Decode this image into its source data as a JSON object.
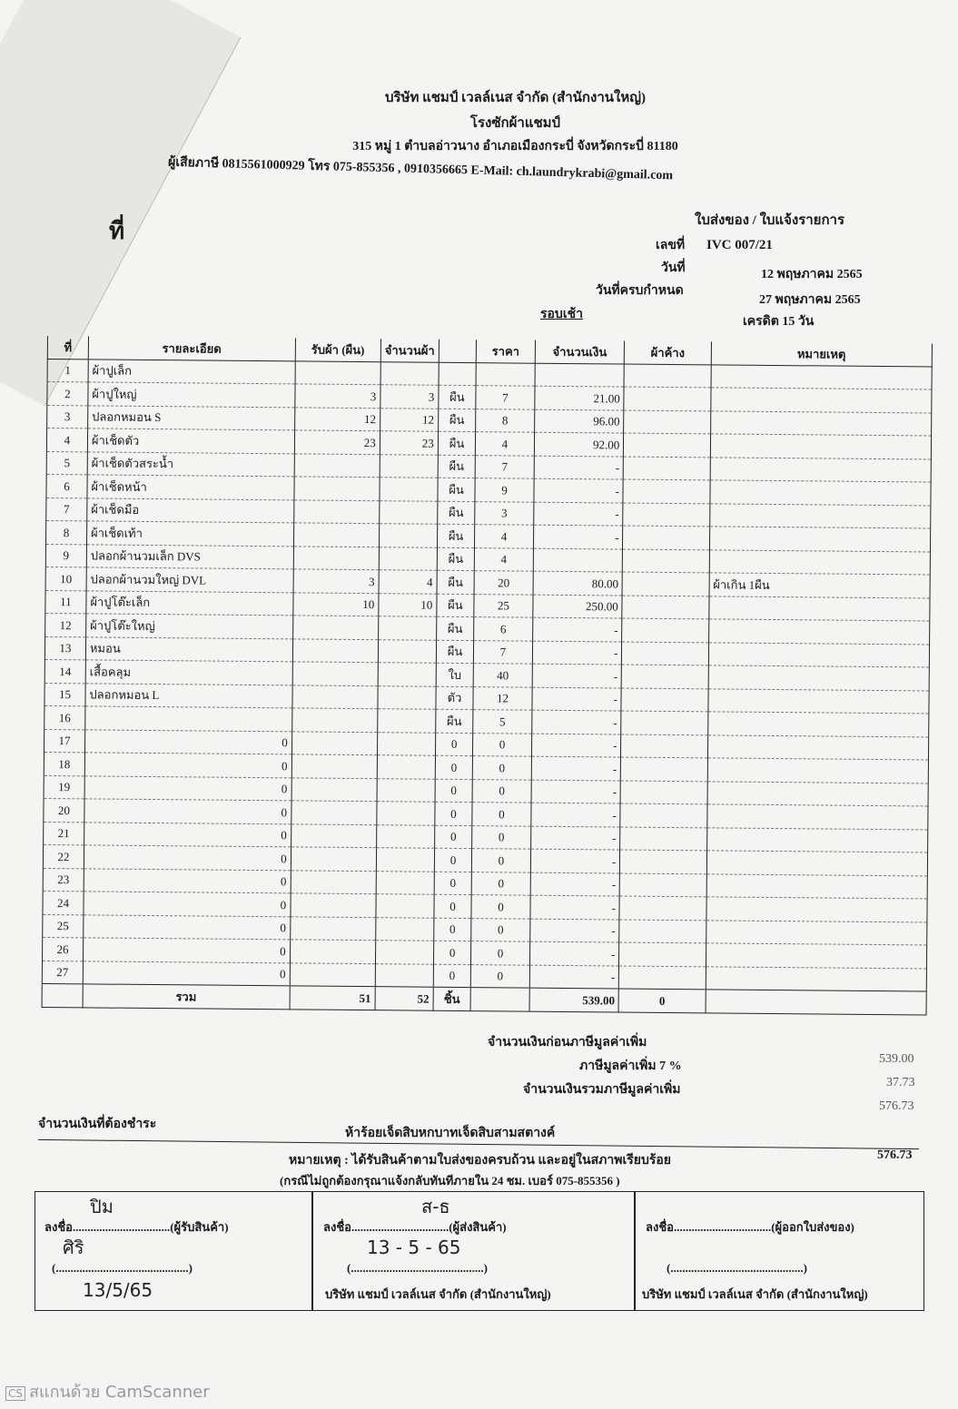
{
  "header": {
    "company": "บริษัท แชมป์ เวลล์เนส จำกัด (สำนักงานใหญ่)",
    "plant": "โรงซักผ้าแชมป์",
    "address": "315 หมู่ 1 ตำบลอ่าวนาง อำเภอเมืองกระบี่ จังหวัดกระบี่ 81180",
    "contact": "ผู้เสียภาษี 0815561000929 โทร 075-855356 , 0910356665 E-Mail: ch.laundrykrabi@gmail.com",
    "customer_label_fragment": "ที่",
    "doc_title": "ใบส่งของ / ใบแจ้งรายการ",
    "no_label": "เลขที่",
    "no_value": "IVC 007/21",
    "date_label": "วันที่",
    "date_value": "12 พฤษภาคม 2565",
    "due_label": "วันที่ครบกำหนด",
    "due_value": "27 พฤษภาคม 2565",
    "round": "รอบเช้า",
    "credit": "เครดิต 15 วัน"
  },
  "table": {
    "columns": [
      "ที่",
      "รายละเอียด",
      "รับผ้า (ผืน)",
      "จำนวนผ้า",
      "",
      "ราคา",
      "จำนวนเงิน",
      "ผ้าค้าง",
      "หมายเหตุ"
    ],
    "rows": [
      [
        "1",
        "ผ้าปูเล็ก",
        "",
        "",
        "",
        "",
        "",
        "",
        ""
      ],
      [
        "2",
        "ผ้าปูใหญ่",
        "3",
        "3",
        "ผืน",
        "7",
        "21.00",
        "",
        ""
      ],
      [
        "3",
        "ปลอกหมอน S",
        "12",
        "12",
        "ผืน",
        "8",
        "96.00",
        "",
        ""
      ],
      [
        "4",
        "ผ้าเช็ดตัว",
        "23",
        "23",
        "ผืน",
        "4",
        "92.00",
        "",
        ""
      ],
      [
        "5",
        "ผ้าเช็ดตัวสระน้ำ",
        "",
        "",
        "ผืน",
        "7",
        "-",
        "",
        ""
      ],
      [
        "6",
        "ผ้าเช็ดหน้า",
        "",
        "",
        "ผืน",
        "9",
        "-",
        "",
        ""
      ],
      [
        "7",
        "ผ้าเช็ดมือ",
        "",
        "",
        "ผืน",
        "3",
        "-",
        "",
        ""
      ],
      [
        "8",
        "ผ้าเช็ดเท้า",
        "",
        "",
        "ผืน",
        "4",
        "-",
        "",
        ""
      ],
      [
        "9",
        "ปลอกผ้านวมเล็ก DVS",
        "",
        "",
        "ผืน",
        "4",
        "",
        "",
        ""
      ],
      [
        "10",
        "ปลอกผ้านวมใหญ่ DVL",
        "3",
        "4",
        "ผืน",
        "20",
        "80.00",
        "",
        "ผ้าเกิน 1ผืน"
      ],
      [
        "11",
        "ผ้าปูโต๊ะเล็ก",
        "10",
        "10",
        "ผืน",
        "25",
        "250.00",
        "",
        ""
      ],
      [
        "12",
        "ผ้าปูโต๊ะใหญ่",
        "",
        "",
        "ผืน",
        "6",
        "-",
        "",
        ""
      ],
      [
        "13",
        "หมอน",
        "",
        "",
        "ผืน",
        "7",
        "-",
        "",
        ""
      ],
      [
        "14",
        "เสื้อคลุม",
        "",
        "",
        "ใบ",
        "40",
        "-",
        "",
        ""
      ],
      [
        "15",
        "ปลอกหมอน L",
        "",
        "",
        "ตัว",
        "12",
        "-",
        "",
        ""
      ],
      [
        "16",
        "",
        "",
        "",
        "ผืน",
        "5",
        "-",
        "",
        ""
      ],
      [
        "17",
        "0",
        "",
        "",
        "0",
        "0",
        "-",
        "",
        ""
      ],
      [
        "18",
        "0",
        "",
        "",
        "0",
        "0",
        "-",
        "",
        ""
      ],
      [
        "19",
        "0",
        "",
        "",
        "0",
        "0",
        "-",
        "",
        ""
      ],
      [
        "20",
        "0",
        "",
        "",
        "0",
        "0",
        "-",
        "",
        ""
      ],
      [
        "21",
        "0",
        "",
        "",
        "0",
        "0",
        "-",
        "",
        ""
      ],
      [
        "22",
        "0",
        "",
        "",
        "0",
        "0",
        "-",
        "",
        ""
      ],
      [
        "23",
        "0",
        "",
        "",
        "0",
        "0",
        "-",
        "",
        ""
      ],
      [
        "24",
        "0",
        "",
        "",
        "0",
        "0",
        "-",
        "",
        ""
      ],
      [
        "25",
        "0",
        "",
        "",
        "0",
        "0",
        "-",
        "",
        ""
      ],
      [
        "26",
        "0",
        "",
        "",
        "0",
        "0",
        "-",
        "",
        ""
      ],
      [
        "27",
        "0",
        "",
        "",
        "0",
        "0",
        "-",
        "",
        ""
      ]
    ],
    "total": {
      "label": "รวม",
      "received": "51",
      "qty": "52",
      "unit": "ชิ้น",
      "amount": "539.00",
      "pending": "0"
    }
  },
  "summary": {
    "subtotal_label": "จำนวนเงินก่อนภาษีมูลค่าเพิ่ม",
    "subtotal": "539.00",
    "vat_label": "ภาษีมูลค่าเพิ่ม 7 %",
    "vat": "37.73",
    "grand_label": "จำนวนเงินรวมภาษีมูลค่าเพิ่ม",
    "grand": "576.73",
    "payable_label": "จำนวนเงินที่ต้องชำระ",
    "payable_words": "ห้าร้อยเจ็ดสิบหกบาทเจ็ดสิบสามสตางค์",
    "payable": "576.73",
    "note1": "หมายเหตุ : ได้รับสินค้าตามใบส่งของครบถ้วน และอยู่ในสภาพเรียบร้อย",
    "note2": "(กรณีไม่ถูกต้องกรุณาแจ้งกลับทันทีภายใน 24 ชม. เบอร์ 075-855356 )"
  },
  "signatures": [
    {
      "line": "ลงชื่อ.................................(ผู้รับสินค้า)",
      "paren": "(.............................................)",
      "hand_sign": "ปิม",
      "hand_name": "ศิริ",
      "hand_date": "13/5/65"
    },
    {
      "line": "ลงชื่อ.................................(ผู้ส่งสินค้า)",
      "paren": "(.............................................)",
      "hand_sign": "ส-ธ",
      "hand_date": "13 - 5 - 65",
      "company": "บริษัท แชมป์ เวลล์เนส จำกัด (สำนักงานใหญ่)"
    },
    {
      "line": "ลงชื่อ.................................(ผู้ออกใบส่งของ)",
      "paren": "(.............................................)",
      "company": "บริษัท แชมป์ เวลล์เนส จำกัด (สำนักงานใหญ่)"
    }
  ],
  "footer": {
    "badge": "CS",
    "text": "สแกนด้วย CamScanner"
  }
}
